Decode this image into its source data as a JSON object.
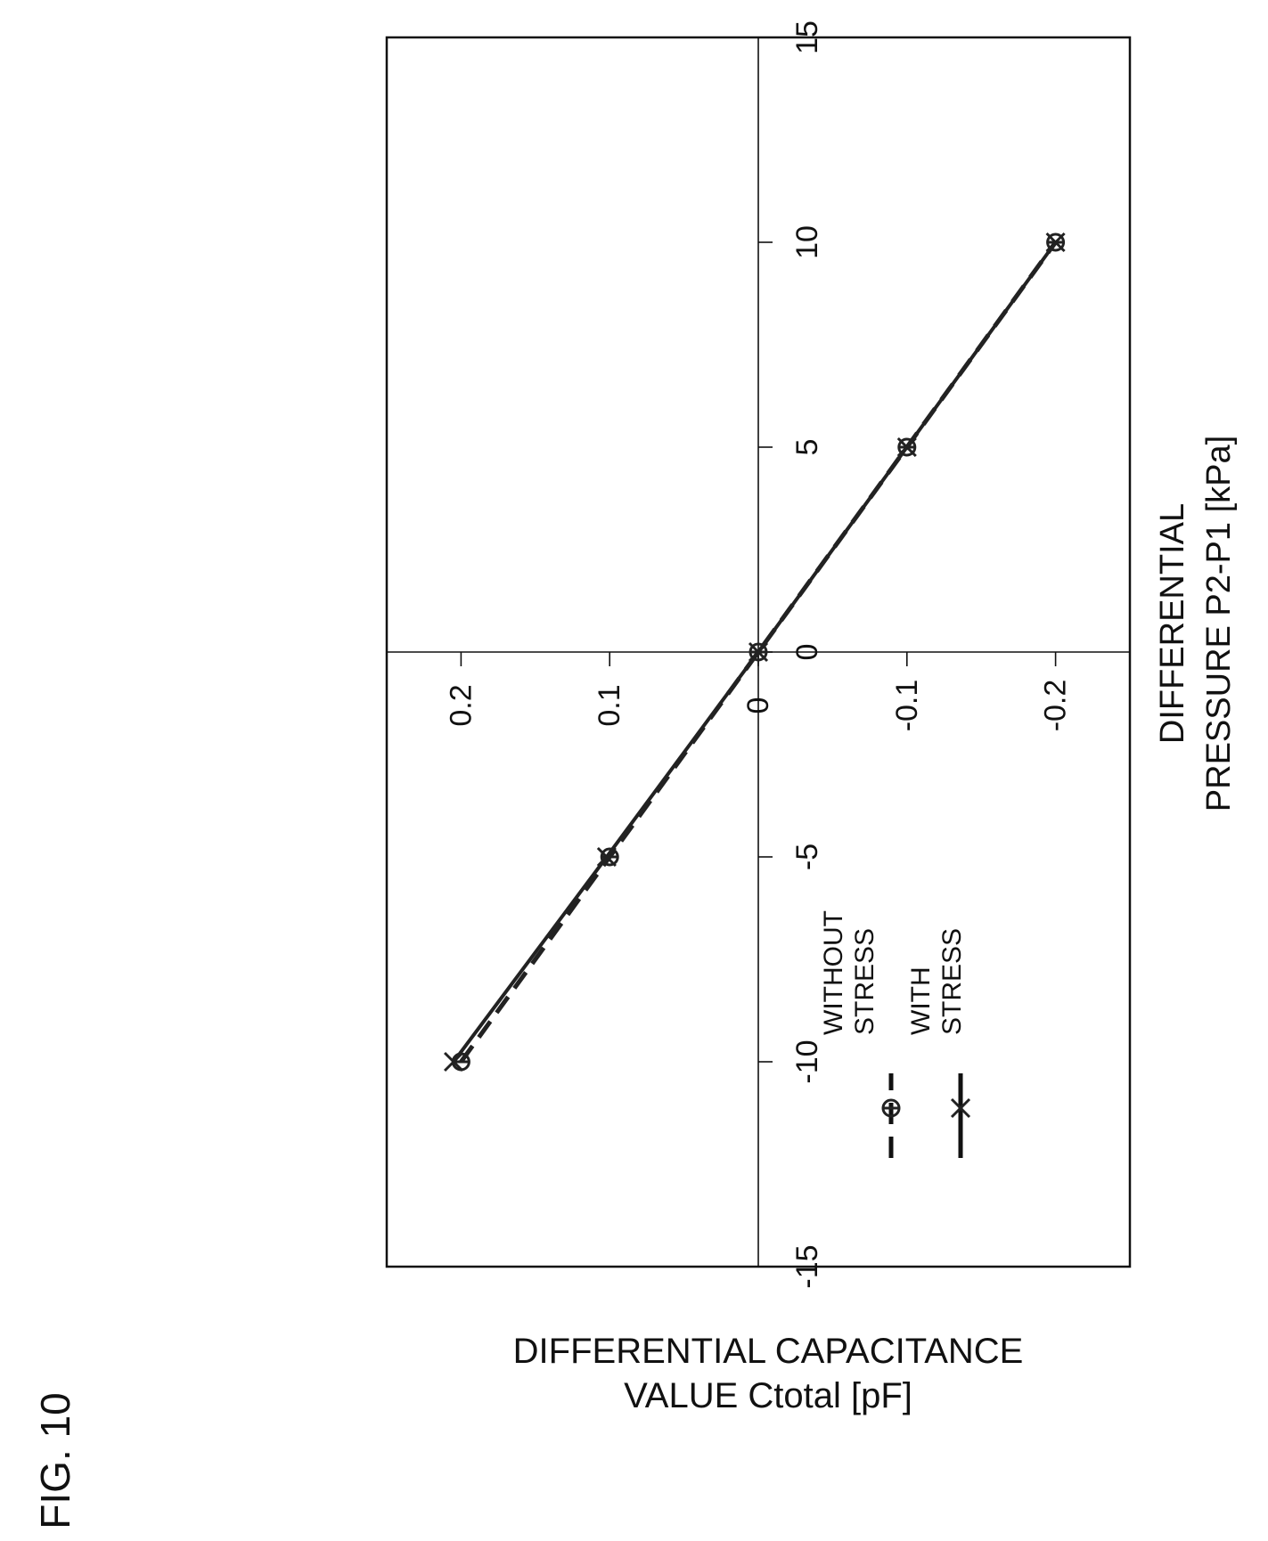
{
  "figure_label": "FIG. 10",
  "chart_data": {
    "type": "line",
    "xlabel_line1": "DIFFERENTIAL",
    "xlabel_line2": "PRESSURE P2-P1 [kPa]",
    "ylabel_line1": "DIFFERENTIAL CAPACITANCE",
    "ylabel_line2": "VALUE Ctotal [pF]",
    "xlim": [
      -15,
      15
    ],
    "ylim": [
      -0.25,
      0.25
    ],
    "x_ticks": [
      "-15",
      "-10",
      "-5",
      "0",
      "5",
      "10",
      "15"
    ],
    "y_ticks": [
      "0.2",
      "0.1",
      "0",
      "-0.1",
      "-0.2"
    ],
    "x_tick_values": [
      -15,
      -10,
      -5,
      0,
      5,
      10,
      15
    ],
    "y_tick_values": [
      0.2,
      0.1,
      0,
      -0.1,
      -0.2
    ],
    "rotated_ccw_90": true,
    "grid": false,
    "legend_position": "lower-left",
    "series": [
      {
        "name_line1": "WITHOUT",
        "name_line2": "STRESS",
        "style": "dashed",
        "marker": "circle-bar",
        "color": "#222222",
        "x": [
          -10,
          -5,
          0,
          5,
          10
        ],
        "y": [
          0.2,
          0.1,
          0,
          -0.1,
          -0.2
        ]
      },
      {
        "name_line1": "WITH",
        "name_line2": "STRESS",
        "style": "solid",
        "marker": "x",
        "color": "#222222",
        "x": [
          -10,
          -5,
          0,
          5,
          10
        ],
        "y": [
          0.205,
          0.102,
          0,
          -0.1,
          -0.2
        ]
      }
    ]
  }
}
